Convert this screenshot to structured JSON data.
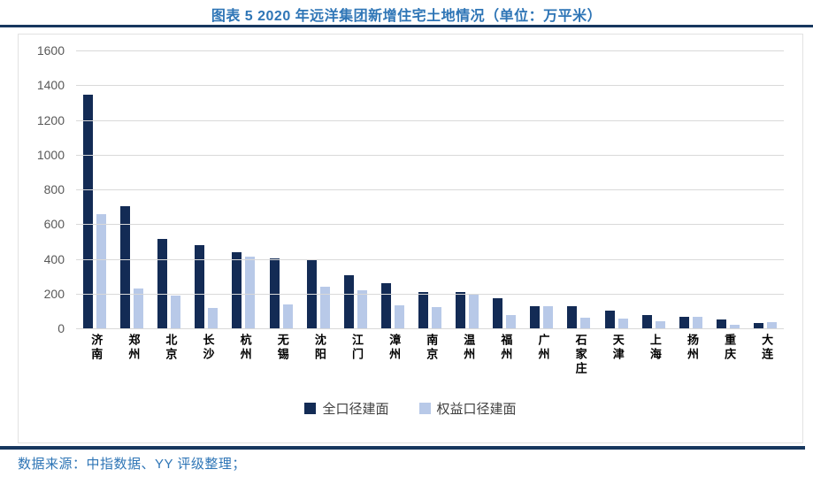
{
  "header": {
    "title": "图表 5 2020 年远洋集团新增住宅土地情况（单位：万平米）"
  },
  "footer": {
    "source": "数据来源：中指数据、YY 评级整理；"
  },
  "colors": {
    "title_blue": "#2E75B6",
    "rule_navy": "#17375E",
    "series_full": "#132B55",
    "series_equity": "#B8C9E8",
    "gridline": "#D9D9D9",
    "tick_label": "#595959",
    "legend_text": "#404040"
  },
  "chart_data": {
    "type": "bar",
    "title": "图表 5 2020 年远洋集团新增住宅土地情况（单位：万平米）",
    "xlabel": "",
    "ylabel": "",
    "ylim": [
      0,
      1600
    ],
    "yticks": [
      0,
      200,
      400,
      600,
      800,
      1000,
      1200,
      1400,
      1600
    ],
    "grid": true,
    "legend_position": "bottom",
    "categories": [
      "济南",
      "郑州",
      "北京",
      "长沙",
      "杭州",
      "无锡",
      "沈阳",
      "江门",
      "漳州",
      "南京",
      "温州",
      "福州",
      "广州",
      "石家庄",
      "天津",
      "上海",
      "扬州",
      "重庆",
      "大连"
    ],
    "series": [
      {
        "name": "全口径建面",
        "color": "#132B55",
        "values": [
          1345,
          705,
          515,
          478,
          436,
          402,
          397,
          305,
          262,
          211,
          207,
          173,
          127,
          129,
          103,
          74,
          64,
          49,
          33
        ]
      },
      {
        "name": "权益口径建面",
        "color": "#B8C9E8",
        "values": [
          655,
          230,
          190,
          115,
          413,
          140,
          238,
          218,
          133,
          124,
          196,
          78,
          130,
          60,
          57,
          43,
          66,
          19,
          36
        ]
      }
    ]
  }
}
